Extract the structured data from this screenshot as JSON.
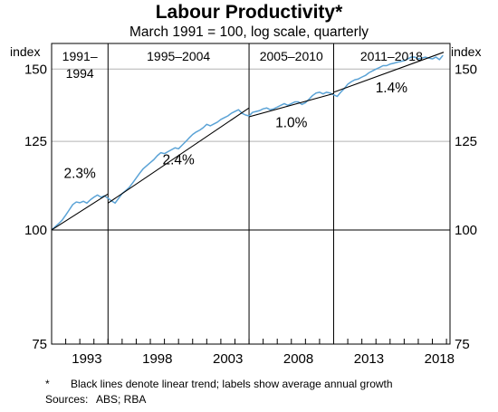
{
  "chart_data": {
    "type": "line",
    "title": "Labour Productivity*",
    "subtitle": "March 1991 = 100, log scale, quarterly",
    "y_unit_left": "index",
    "y_unit_right": "index",
    "y_scale": "log",
    "ylim": [
      75,
      160
    ],
    "y_ticks": [
      {
        "value": 75,
        "label": "75"
      },
      {
        "value": 100,
        "label": "100"
      },
      {
        "value": 125,
        "label": "125"
      },
      {
        "value": 150,
        "label": "150"
      }
    ],
    "xlim": [
      1991.0,
      2019.25
    ],
    "x_ticks": [
      {
        "value": 1993.5,
        "label": "1993"
      },
      {
        "value": 1998.5,
        "label": "1998"
      },
      {
        "value": 2003.5,
        "label": "2003"
      },
      {
        "value": 2008.5,
        "label": "2008"
      },
      {
        "value": 2013.5,
        "label": "2013"
      },
      {
        "value": 2018.5,
        "label": "2018"
      }
    ],
    "grid": true,
    "period_dividers": [
      1995.0,
      2005.0,
      2011.0
    ],
    "periods": [
      {
        "label_lines": [
          "1991–",
          "1994"
        ],
        "x_center": 1993.0
      },
      {
        "label_lines": [
          "1995–2004"
        ],
        "x_center": 2000.0
      },
      {
        "label_lines": [
          "2005–2010"
        ],
        "x_center": 2008.0
      },
      {
        "label_lines": [
          "2011–2018"
        ],
        "x_center": 2015.1
      }
    ],
    "series": [
      {
        "values": [
          [
            1991.0,
            100.0
          ],
          [
            1991.25,
            100.8
          ],
          [
            1991.5,
            101.6
          ],
          [
            1991.75,
            102.5
          ],
          [
            1992.0,
            103.8
          ],
          [
            1992.25,
            105.2
          ],
          [
            1992.5,
            106.6
          ],
          [
            1992.75,
            107.3
          ],
          [
            1993.0,
            107.1
          ],
          [
            1993.25,
            107.5
          ],
          [
            1993.5,
            107.0
          ],
          [
            1993.75,
            107.9
          ],
          [
            1994.0,
            108.6
          ],
          [
            1994.25,
            109.2
          ],
          [
            1994.5,
            108.6
          ],
          [
            1994.75,
            109.0
          ],
          [
            1995.0,
            108.3
          ],
          [
            1995.25,
            107.6
          ],
          [
            1995.5,
            107.0
          ],
          [
            1995.75,
            108.3
          ],
          [
            1996.0,
            109.6
          ],
          [
            1996.25,
            110.4
          ],
          [
            1996.5,
            111.3
          ],
          [
            1996.75,
            112.6
          ],
          [
            1997.0,
            114.0
          ],
          [
            1997.25,
            115.4
          ],
          [
            1997.5,
            116.7
          ],
          [
            1997.75,
            117.6
          ],
          [
            1998.0,
            118.5
          ],
          [
            1998.25,
            119.4
          ],
          [
            1998.5,
            120.6
          ],
          [
            1998.75,
            121.5
          ],
          [
            1999.0,
            121.2
          ],
          [
            1999.25,
            121.8
          ],
          [
            1999.5,
            122.4
          ],
          [
            1999.75,
            123.0
          ],
          [
            2000.0,
            122.7
          ],
          [
            2000.25,
            123.8
          ],
          [
            2000.5,
            124.9
          ],
          [
            2000.75,
            126.1
          ],
          [
            2001.0,
            127.2
          ],
          [
            2001.25,
            128.0
          ],
          [
            2001.5,
            128.6
          ],
          [
            2001.75,
            129.4
          ],
          [
            2002.0,
            130.5
          ],
          [
            2002.25,
            130.0
          ],
          [
            2002.5,
            130.6
          ],
          [
            2002.75,
            131.2
          ],
          [
            2003.0,
            132.1
          ],
          [
            2003.25,
            132.7
          ],
          [
            2003.5,
            133.3
          ],
          [
            2003.75,
            134.2
          ],
          [
            2004.0,
            134.8
          ],
          [
            2004.25,
            135.4
          ],
          [
            2004.5,
            134.2
          ],
          [
            2004.75,
            133.6
          ],
          [
            2005.0,
            133.3
          ],
          [
            2005.25,
            134.5
          ],
          [
            2005.5,
            134.8
          ],
          [
            2005.75,
            135.1
          ],
          [
            2006.0,
            135.7
          ],
          [
            2006.25,
            136.0
          ],
          [
            2006.5,
            135.4
          ],
          [
            2006.75,
            135.7
          ],
          [
            2007.0,
            136.3
          ],
          [
            2007.25,
            136.9
          ],
          [
            2007.5,
            137.5
          ],
          [
            2007.75,
            136.9
          ],
          [
            2008.0,
            137.5
          ],
          [
            2008.25,
            138.1
          ],
          [
            2008.5,
            138.1
          ],
          [
            2008.75,
            137.2
          ],
          [
            2009.0,
            137.8
          ],
          [
            2009.25,
            139.0
          ],
          [
            2009.5,
            140.3
          ],
          [
            2009.75,
            141.2
          ],
          [
            2010.0,
            141.5
          ],
          [
            2010.25,
            140.9
          ],
          [
            2010.5,
            141.5
          ],
          [
            2010.75,
            141.2
          ],
          [
            2011.0,
            140.6
          ],
          [
            2011.25,
            140.0
          ],
          [
            2011.5,
            141.5
          ],
          [
            2011.75,
            142.8
          ],
          [
            2012.0,
            144.4
          ],
          [
            2012.25,
            145.3
          ],
          [
            2012.5,
            146.0
          ],
          [
            2012.75,
            146.3
          ],
          [
            2013.0,
            147.0
          ],
          [
            2013.25,
            147.6
          ],
          [
            2013.5,
            148.6
          ],
          [
            2013.75,
            149.3
          ],
          [
            2014.0,
            150.0
          ],
          [
            2014.25,
            150.6
          ],
          [
            2014.5,
            151.3
          ],
          [
            2014.75,
            151.3
          ],
          [
            2015.0,
            151.9
          ],
          [
            2015.25,
            152.2
          ],
          [
            2015.5,
            152.6
          ],
          [
            2015.75,
            152.9
          ],
          [
            2016.0,
            153.2
          ],
          [
            2016.25,
            153.9
          ],
          [
            2016.5,
            154.6
          ],
          [
            2016.75,
            154.6
          ],
          [
            2017.0,
            153.9
          ],
          [
            2017.25,
            154.2
          ],
          [
            2017.5,
            154.6
          ],
          [
            2017.75,
            154.2
          ],
          [
            2018.0,
            153.9
          ],
          [
            2018.25,
            154.6
          ],
          [
            2018.5,
            153.6
          ],
          [
            2018.75,
            155.3
          ]
        ]
      }
    ],
    "trend_lines": [
      {
        "period": "1991–1994",
        "from": [
          1991.0,
          100.0
        ],
        "to": [
          1995.0,
          109.5
        ],
        "rate_label": "2.3%",
        "label_at": [
          1993.0,
          114.0
        ]
      },
      {
        "period": "1995–2004",
        "from": [
          1995.0,
          107.0
        ],
        "to": [
          2005.0,
          136.0
        ],
        "rate_label": "2.4%",
        "label_at": [
          2000.0,
          118.0
        ]
      },
      {
        "period": "2005–2010",
        "from": [
          2005.0,
          133.0
        ],
        "to": [
          2011.0,
          141.0
        ],
        "rate_label": "1.0%",
        "label_at": [
          2008.0,
          129.5
        ]
      },
      {
        "period": "2011–2018",
        "from": [
          2011.0,
          141.5
        ],
        "to": [
          2018.8,
          156.5
        ],
        "rate_label": "1.4%",
        "label_at": [
          2015.1,
          141.5
        ]
      }
    ],
    "colors": {
      "series": "#5ba3d6",
      "trend": "#000000",
      "grid": "#b4b4b4"
    }
  },
  "footnote": {
    "marker": "*",
    "text": "Black lines denote linear trend; labels show average annual growth",
    "sources_label": "Sources:",
    "sources": "ABS; RBA"
  }
}
